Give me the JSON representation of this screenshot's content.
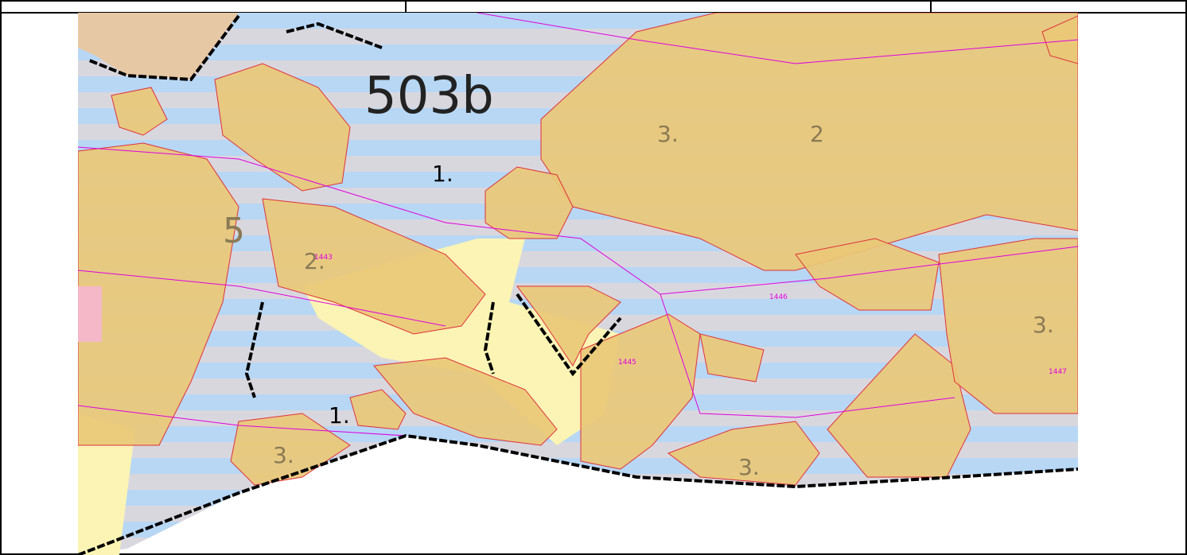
{
  "map": {
    "title": "503b",
    "compartment_labels": [
      "1.",
      "1.",
      "3.",
      "3.",
      "3.",
      "5",
      "2.",
      "2",
      "3."
    ],
    "parcel_ids": [
      "1443",
      "1445",
      "1446",
      "1447"
    ]
  }
}
